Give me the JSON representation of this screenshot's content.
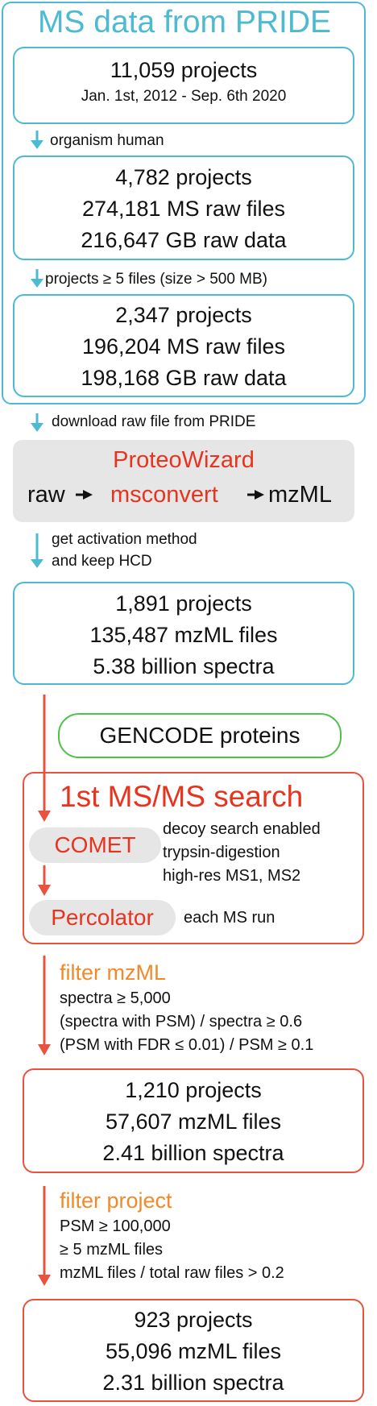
{
  "pride": {
    "title": "MS data from PRIDE",
    "box1": [
      "11,059 projects",
      "Jan. 1st, 2012 - Sep. 6th 2020"
    ],
    "step1": "organism human",
    "box2": [
      "4,782 projects",
      "274,181 MS raw files",
      "216,647 GB raw data"
    ],
    "step2": "projects ≥ 5 files (size > 500 MB)",
    "box3": [
      "2,347 projects",
      "196,204 MS raw files",
      "198,168 GB raw data"
    ]
  },
  "step_download": "download raw file from PRIDE",
  "proteowizard": {
    "title": "ProteoWizard",
    "raw": "raw",
    "msconvert": "msconvert",
    "mzml": "mzML"
  },
  "step_activation": [
    "get activation method",
    "and keep HCD"
  ],
  "box4": [
    "1,891 projects",
    "135,487 mzML files",
    "5.38 billion spectra"
  ],
  "gencode": "GENCODE proteins",
  "search": {
    "title": "1st MS/MS search",
    "comet": "COMET",
    "comet_notes": [
      "decoy search enabled",
      "trypsin-digestion",
      "high-res MS1, MS2"
    ],
    "percolator": "Percolator",
    "percolator_note": "each MS run"
  },
  "filter_mzml": {
    "title": "filter mzML",
    "criteria": [
      "spectra ≥ 5,000",
      "(spectra with PSM) / spectra ≥ 0.6",
      "(PSM with FDR ≤ 0.01) / PSM ≥ 0.1"
    ]
  },
  "box5": [
    "1,210 projects",
    "57,607 mzML files",
    "2.41 billion spectra"
  ],
  "filter_project": {
    "title": "filter project",
    "criteria": [
      "PSM ≥ 100,000",
      "≥ 5 mzML files",
      "mzML files / total raw files > 0.2"
    ]
  },
  "box6": [
    "923 projects",
    "55,096 mzML files",
    "2.31 billion spectra"
  ],
  "colors": {
    "blue": "#4dbad3",
    "red": "#e8533f",
    "orange": "#f08a2a",
    "green": "#4fc14a",
    "gray": "#e6e6e6"
  }
}
